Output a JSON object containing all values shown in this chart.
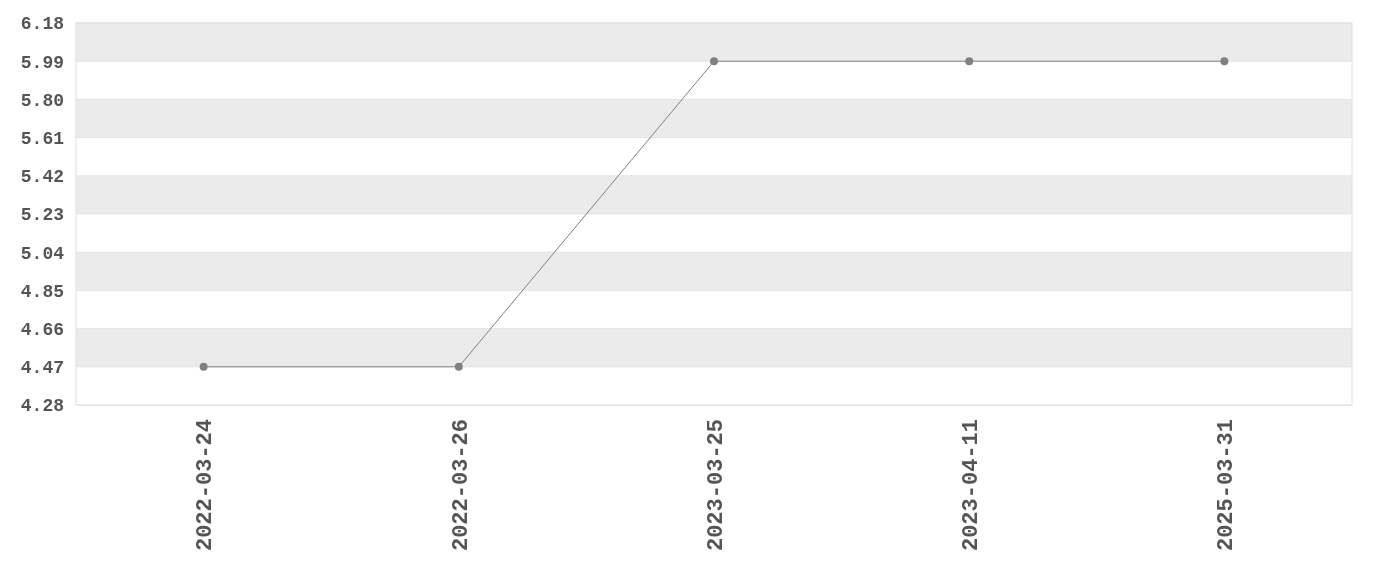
{
  "chart_data": {
    "type": "line",
    "categories": [
      "2022-03-24",
      "2022-03-26",
      "2023-03-25",
      "2023-04-11",
      "2025-03-31"
    ],
    "series": [
      {
        "color": "#808080",
        "values": [
          4.47,
          4.47,
          5.99,
          5.99,
          5.99
        ]
      }
    ],
    "ylim": [
      4.28,
      6.18
    ],
    "yticks": [
      {
        "value": 4.28,
        "label": "4.28"
      },
      {
        "value": 4.47,
        "label": "4.47"
      },
      {
        "value": 4.66,
        "label": "4.66"
      },
      {
        "value": 4.85,
        "label": "4.85"
      },
      {
        "value": 5.04,
        "label": "5.04"
      },
      {
        "value": 5.23,
        "label": "5.23"
      },
      {
        "value": 5.42,
        "label": "5.42"
      },
      {
        "value": 5.61,
        "label": "5.61"
      },
      {
        "value": 5.8,
        "label": "5.80"
      },
      {
        "value": 5.99,
        "label": "5.99"
      },
      {
        "value": 6.18,
        "label": "6.18"
      }
    ],
    "grid": "y",
    "marker": "circle",
    "line_style": "solid"
  }
}
